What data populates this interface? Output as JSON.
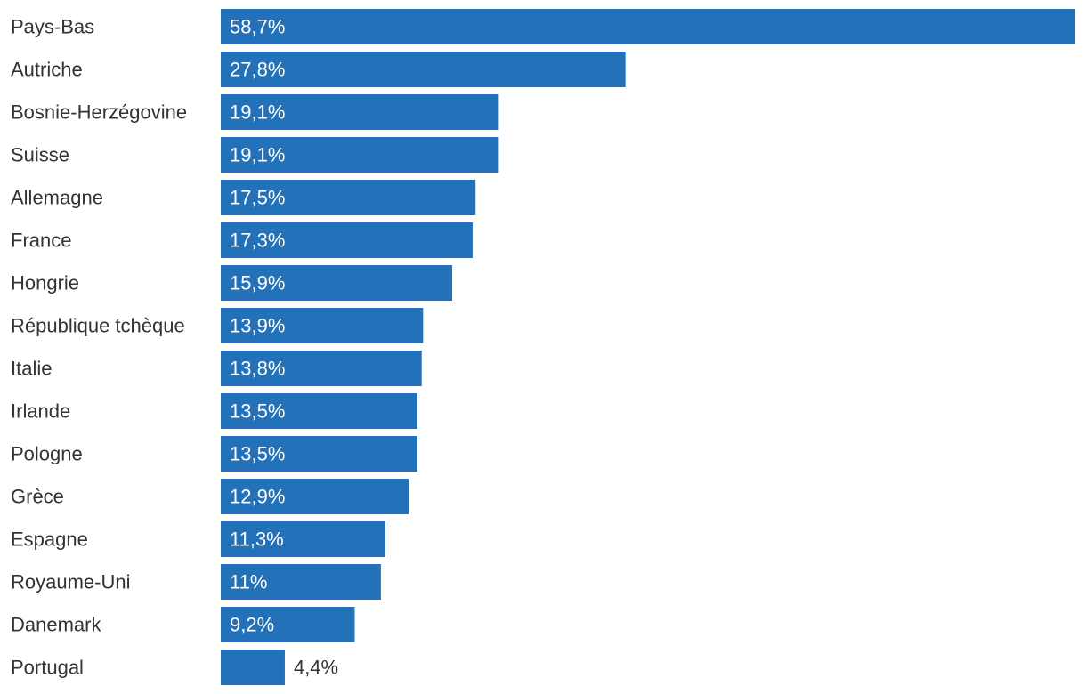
{
  "chart_data": {
    "type": "bar",
    "orientation": "horizontal",
    "categories": [
      "Pays-Bas",
      "Autriche",
      "Bosnie-Herzégovine",
      "Suisse",
      "Allemagne",
      "France",
      "Hongrie",
      "République tchèque",
      "Italie",
      "Irlande",
      "Pologne",
      "Grèce",
      "Espagne",
      "Royaume-Uni",
      "Danemark",
      "Portugal"
    ],
    "values": [
      58.7,
      27.8,
      19.1,
      19.1,
      17.5,
      17.3,
      15.9,
      13.9,
      13.8,
      13.5,
      13.5,
      12.9,
      11.3,
      11.0,
      9.2,
      4.4
    ],
    "value_labels": [
      "58,7%",
      "27,8%",
      "19,1%",
      "19,1%",
      "17,5%",
      "17,3%",
      "15,9%",
      "13,9%",
      "13,8%",
      "13,5%",
      "13,5%",
      "12,9%",
      "11,3%",
      "11%",
      "9,2%",
      "4,4%"
    ],
    "xlim": [
      0,
      58.7
    ],
    "grid": false,
    "legend": "none",
    "colors": {
      "bar": "#2271b9",
      "label_inside": "#ffffff",
      "label_outside": "#333333",
      "category_text": "#333333"
    }
  }
}
